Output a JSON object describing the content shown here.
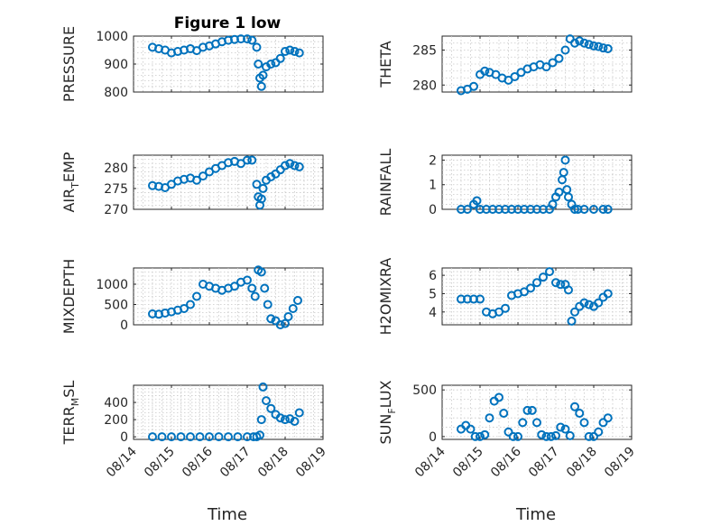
{
  "figure": {
    "title": "Figure 1 low",
    "xlabel": "Time",
    "marker_color": "#0072BD"
  },
  "chart_data": [
    {
      "type": "scatter",
      "ylabel": "PRESSURE",
      "xticks": [
        "08/14",
        "08/15",
        "08/16",
        "08/17",
        "08/18",
        "08/19"
      ],
      "xlim": [
        "08/14",
        "08/19"
      ],
      "ylim": [
        800,
        1000
      ],
      "yticks": [
        800,
        900,
        1000
      ],
      "grid": true,
      "x": [
        "08/14 12:00",
        "08/14 16:00",
        "08/14 20:00",
        "08/15 00:00",
        "08/15 04:00",
        "08/15 08:00",
        "08/15 12:00",
        "08/15 16:00",
        "08/15 20:00",
        "08/16 00:00",
        "08/16 04:00",
        "08/16 08:00",
        "08/16 12:00",
        "08/16 16:00",
        "08/16 20:00",
        "08/17 00:00",
        "08/17 03:00",
        "08/17 06:00",
        "08/17 07:00",
        "08/17 08:00",
        "08/17 09:00",
        "08/17 10:00",
        "08/17 12:00",
        "08/17 15:00",
        "08/17 18:00",
        "08/17 21:00",
        "08/18 00:00",
        "08/18 03:00",
        "08/18 06:00",
        "08/18 09:00"
      ],
      "y": [
        960,
        955,
        950,
        940,
        945,
        950,
        955,
        948,
        960,
        965,
        972,
        980,
        985,
        988,
        990,
        990,
        985,
        960,
        900,
        850,
        820,
        860,
        890,
        900,
        905,
        920,
        945,
        950,
        945,
        940
      ]
    },
    {
      "type": "scatter",
      "ylabel": "THETA",
      "xticks": [
        "08/14",
        "08/15",
        "08/16",
        "08/17",
        "08/18",
        "08/19"
      ],
      "xlim": [
        "08/14",
        "08/19"
      ],
      "ylim": [
        279,
        287
      ],
      "yticks": [
        280,
        285
      ],
      "grid": true,
      "x": [
        "08/14 12:00",
        "08/14 16:00",
        "08/14 20:00",
        "08/15 00:00",
        "08/15 03:00",
        "08/15 06:00",
        "08/15 10:00",
        "08/15 14:00",
        "08/15 18:00",
        "08/15 22:00",
        "08/16 02:00",
        "08/16 06:00",
        "08/16 10:00",
        "08/16 14:00",
        "08/16 18:00",
        "08/16 22:00",
        "08/17 02:00",
        "08/17 06:00",
        "08/17 09:00",
        "08/17 12:00",
        "08/17 15:00",
        "08/17 18:00",
        "08/17 21:00",
        "08/18 00:00",
        "08/18 03:00",
        "08/18 06:00",
        "08/18 09:00"
      ],
      "y": [
        279.2,
        279.4,
        279.8,
        281.5,
        282.0,
        281.8,
        281.5,
        281.0,
        280.7,
        281.2,
        281.8,
        282.3,
        282.6,
        282.9,
        282.6,
        283.2,
        283.8,
        285.0,
        286.6,
        286.0,
        286.3,
        286.0,
        285.8,
        285.6,
        285.5,
        285.3,
        285.2
      ]
    },
    {
      "type": "scatter",
      "ylabel": "AIR_TEMP",
      "xticks": [
        "08/14",
        "08/15",
        "08/16",
        "08/17",
        "08/18",
        "08/19"
      ],
      "xlim": [
        "08/14",
        "08/19"
      ],
      "ylim": [
        270,
        283
      ],
      "yticks": [
        270,
        275,
        280
      ],
      "grid": true,
      "x": [
        "08/14 12:00",
        "08/14 16:00",
        "08/14 20:00",
        "08/15 00:00",
        "08/15 04:00",
        "08/15 08:00",
        "08/15 12:00",
        "08/15 16:00",
        "08/15 20:00",
        "08/16 00:00",
        "08/16 04:00",
        "08/16 08:00",
        "08/16 12:00",
        "08/16 16:00",
        "08/16 20:00",
        "08/17 00:00",
        "08/17 03:00",
        "08/17 06:00",
        "08/17 07:00",
        "08/17 08:00",
        "08/17 09:00",
        "08/17 10:00",
        "08/17 12:00",
        "08/17 15:00",
        "08/17 18:00",
        "08/17 21:00",
        "08/18 00:00",
        "08/18 03:00",
        "08/18 06:00",
        "08/18 09:00"
      ],
      "y": [
        275.7,
        275.5,
        275.2,
        276.0,
        276.8,
        277.2,
        277.5,
        277.0,
        278.0,
        279.0,
        279.8,
        280.5,
        281.2,
        281.5,
        281.0,
        281.8,
        281.8,
        276.0,
        273.0,
        271.0,
        272.5,
        275.0,
        277.0,
        277.8,
        278.5,
        279.5,
        280.5,
        281.0,
        280.5,
        280.2
      ]
    },
    {
      "type": "scatter",
      "ylabel": "RAINFALL",
      "xticks": [
        "08/14",
        "08/15",
        "08/16",
        "08/17",
        "08/18",
        "08/19"
      ],
      "xlim": [
        "08/14",
        "08/19"
      ],
      "ylim": [
        0,
        2.2
      ],
      "yticks": [
        0,
        1,
        2
      ],
      "grid": true,
      "x": [
        "08/14 12:00",
        "08/14 16:00",
        "08/14 20:00",
        "08/14 22:00",
        "08/15 00:00",
        "08/15 04:00",
        "08/15 08:00",
        "08/15 12:00",
        "08/15 16:00",
        "08/15 20:00",
        "08/16 00:00",
        "08/16 04:00",
        "08/16 08:00",
        "08/16 12:00",
        "08/16 16:00",
        "08/16 20:00",
        "08/16 22:00",
        "08/17 00:00",
        "08/17 02:00",
        "08/17 04:00",
        "08/17 05:00",
        "08/17 06:00",
        "08/17 07:00",
        "08/17 08:00",
        "08/17 10:00",
        "08/17 12:00",
        "08/17 14:00",
        "08/17 18:00",
        "08/18 00:00",
        "08/18 06:00",
        "08/18 09:00"
      ],
      "y": [
        0,
        0,
        0.2,
        0.35,
        0,
        0,
        0,
        0,
        0,
        0,
        0,
        0,
        0,
        0,
        0,
        0,
        0.2,
        0.5,
        0.7,
        1.2,
        1.5,
        2.0,
        0.8,
        0.5,
        0.2,
        0,
        0,
        0,
        0,
        0,
        0
      ]
    },
    {
      "type": "scatter",
      "ylabel": "MIXDEPTH",
      "xticks": [
        "08/14",
        "08/15",
        "08/16",
        "08/17",
        "08/18",
        "08/19"
      ],
      "xlim": [
        "08/14",
        "08/19"
      ],
      "ylim": [
        0,
        1400
      ],
      "yticks": [
        0,
        500,
        1000
      ],
      "grid": true,
      "x": [
        "08/14 12:00",
        "08/14 16:00",
        "08/14 20:00",
        "08/15 00:00",
        "08/15 04:00",
        "08/15 08:00",
        "08/15 12:00",
        "08/15 16:00",
        "08/15 20:00",
        "08/16 00:00",
        "08/16 04:00",
        "08/16 08:00",
        "08/16 12:00",
        "08/16 16:00",
        "08/16 20:00",
        "08/17 00:00",
        "08/17 03:00",
        "08/17 05:00",
        "08/17 07:00",
        "08/17 09:00",
        "08/17 11:00",
        "08/17 13:00",
        "08/17 15:00",
        "08/17 18:00",
        "08/17 21:00",
        "08/18 00:00",
        "08/18 02:00",
        "08/18 05:00",
        "08/18 08:00"
      ],
      "y": [
        270,
        260,
        290,
        320,
        360,
        400,
        500,
        700,
        1000,
        950,
        900,
        850,
        900,
        950,
        1050,
        1100,
        900,
        700,
        1350,
        1300,
        900,
        500,
        150,
        100,
        0,
        30,
        200,
        400,
        600
      ]
    },
    {
      "type": "scatter",
      "ylabel": "H2OMIXRA",
      "xticks": [
        "08/14",
        "08/15",
        "08/16",
        "08/17",
        "08/18",
        "08/19"
      ],
      "xlim": [
        "08/14",
        "08/19"
      ],
      "ylim": [
        3.3,
        6.4
      ],
      "yticks": [
        4,
        5,
        6
      ],
      "grid": true,
      "x": [
        "08/14 12:00",
        "08/14 16:00",
        "08/14 20:00",
        "08/15 00:00",
        "08/15 04:00",
        "08/15 08:00",
        "08/15 12:00",
        "08/15 16:00",
        "08/15 20:00",
        "08/16 00:00",
        "08/16 04:00",
        "08/16 08:00",
        "08/16 12:00",
        "08/16 16:00",
        "08/16 20:00",
        "08/17 00:00",
        "08/17 03:00",
        "08/17 06:00",
        "08/17 08:00",
        "08/17 10:00",
        "08/17 12:00",
        "08/17 15:00",
        "08/17 18:00",
        "08/17 21:00",
        "08/18 00:00",
        "08/18 03:00",
        "08/18 06:00",
        "08/18 09:00"
      ],
      "y": [
        4.7,
        4.7,
        4.7,
        4.7,
        4.0,
        3.9,
        4.0,
        4.2,
        4.9,
        5.0,
        5.1,
        5.3,
        5.6,
        5.9,
        6.2,
        5.6,
        5.5,
        5.5,
        5.2,
        3.5,
        4.0,
        4.3,
        4.5,
        4.4,
        4.3,
        4.5,
        4.8,
        5.0
      ]
    },
    {
      "type": "scatter",
      "ylabel": "TERR_MSL",
      "xticks": [
        "08/14",
        "08/15",
        "08/16",
        "08/17",
        "08/18",
        "08/19"
      ],
      "xlim": [
        "08/14",
        "08/19"
      ],
      "ylim": [
        -30,
        600
      ],
      "yticks": [
        0,
        200,
        400
      ],
      "grid": true,
      "x": [
        "08/14 12:00",
        "08/14 18:00",
        "08/15 00:00",
        "08/15 06:00",
        "08/15 12:00",
        "08/15 18:00",
        "08/16 00:00",
        "08/16 06:00",
        "08/16 12:00",
        "08/16 18:00",
        "08/17 00:00",
        "08/17 04:00",
        "08/17 06:00",
        "08/17 08:00",
        "08/17 09:00",
        "08/17 10:00",
        "08/17 12:00",
        "08/17 15:00",
        "08/17 18:00",
        "08/17 21:00",
        "08/18 00:00",
        "08/18 03:00",
        "08/18 06:00",
        "08/18 09:00"
      ],
      "y": [
        0,
        0,
        0,
        0,
        0,
        0,
        0,
        0,
        0,
        0,
        0,
        0,
        0,
        20,
        200,
        580,
        420,
        330,
        260,
        220,
        200,
        210,
        180,
        280
      ]
    },
    {
      "type": "scatter",
      "ylabel": "SUN_FLUX",
      "xticks": [
        "08/14",
        "08/15",
        "08/16",
        "08/17",
        "08/18",
        "08/19"
      ],
      "xlim": [
        "08/14",
        "08/19"
      ],
      "ylim": [
        -30,
        550
      ],
      "yticks": [
        0,
        500
      ],
      "grid": true,
      "x": [
        "08/14 12:00",
        "08/14 15:00",
        "08/14 18:00",
        "08/14 21:00",
        "08/15 00:00",
        "08/15 03:00",
        "08/15 06:00",
        "08/15 09:00",
        "08/15 12:00",
        "08/15 15:00",
        "08/15 18:00",
        "08/15 21:00",
        "08/16 00:00",
        "08/16 03:00",
        "08/16 06:00",
        "08/16 09:00",
        "08/16 12:00",
        "08/16 15:00",
        "08/16 18:00",
        "08/16 21:00",
        "08/17 00:00",
        "08/17 03:00",
        "08/17 06:00",
        "08/17 09:00",
        "08/17 12:00",
        "08/17 15:00",
        "08/17 18:00",
        "08/17 21:00",
        "08/18 00:00",
        "08/18 03:00",
        "08/18 06:00",
        "08/18 09:00"
      ],
      "y": [
        80,
        120,
        80,
        0,
        0,
        20,
        200,
        380,
        420,
        250,
        50,
        0,
        0,
        150,
        280,
        280,
        150,
        20,
        0,
        0,
        10,
        100,
        80,
        10,
        320,
        250,
        150,
        0,
        0,
        50,
        150,
        200
      ]
    }
  ]
}
